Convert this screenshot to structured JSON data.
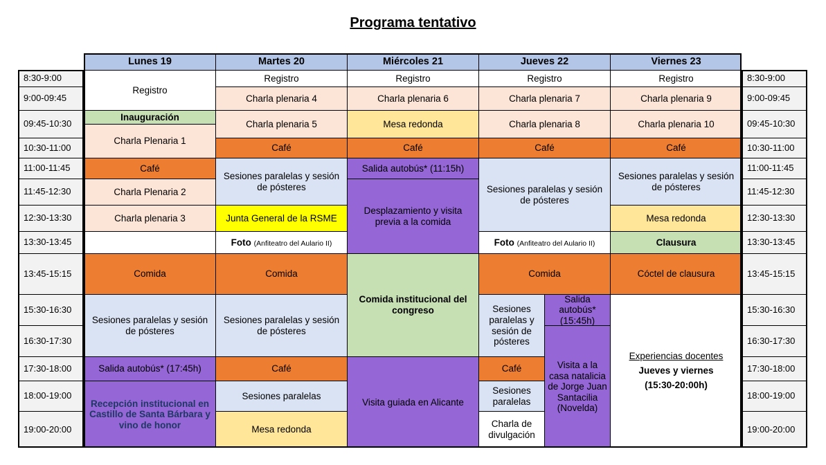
{
  "title": "Programa tentativo",
  "colors": {
    "header": "#b4c6e7",
    "time": "#f2f2f2",
    "plenary": "#fce4d6",
    "orange": "#ed7d31",
    "green": "#c6e0b4",
    "sessions": "#dae3f3",
    "purple": "#9466d6",
    "yellow": "#ffff00",
    "gold": "#ffe699",
    "white": "#ffffff",
    "navy_text": "#1f3864"
  },
  "days": [
    {
      "label": "Lunes 19",
      "col": 2,
      "cs": 1
    },
    {
      "label": "Martes 20",
      "col": 3,
      "cs": 1
    },
    {
      "label": "Miércoles 21",
      "col": 4,
      "cs": 1
    },
    {
      "label": "Jueves 22",
      "col": 5,
      "cs": 2
    },
    {
      "label": "Viernes 23",
      "col": 7,
      "cs": 1
    }
  ],
  "time_slots": [
    {
      "label": "8:30-9:00",
      "row": 2,
      "rs": 1
    },
    {
      "label": "9:00-09:45",
      "row": 3,
      "rs": 1
    },
    {
      "label": "09:45-10:30",
      "row": 4,
      "rs": 2
    },
    {
      "label": "10:30-11:00",
      "row": 6,
      "rs": 1
    },
    {
      "label": "11:00-11:45",
      "row": 7,
      "rs": 1
    },
    {
      "label": "11:45-12:30",
      "row": 8,
      "rs": 1
    },
    {
      "label": "12:30-13:30",
      "row": 9,
      "rs": 1
    },
    {
      "label": "13:30-13:45",
      "row": 10,
      "rs": 1
    },
    {
      "label": "13:45-15:15",
      "row": 11,
      "rs": 1
    },
    {
      "label": "15:30-16:30",
      "row": 12,
      "rs": 1
    },
    {
      "label": "16:30-17:30",
      "row": 13,
      "rs": 1
    },
    {
      "label": "17:30-18:00",
      "row": 14,
      "rs": 1
    },
    {
      "label": "18:00-19:00",
      "row": 15,
      "rs": 1
    },
    {
      "label": "19:00-20:00",
      "row": 16,
      "rs": 1
    }
  ],
  "cells": [
    {
      "day": "lunes",
      "text": "Registro",
      "bg": "white",
      "col": 2,
      "row": 2,
      "rs": 2
    },
    {
      "day": "lunes",
      "text": "Inauguración",
      "bg": "green",
      "bold": true,
      "col": 2,
      "row": 4
    },
    {
      "day": "lunes",
      "text": "Charla Plenaria 1",
      "bg": "plenary",
      "col": 2,
      "row": 5,
      "rs": 2
    },
    {
      "day": "lunes",
      "text": "Café",
      "bg": "orange",
      "col": 2,
      "row": 7
    },
    {
      "day": "lunes",
      "text": "Charla Plenaria 2",
      "bg": "plenary",
      "col": 2,
      "row": 8
    },
    {
      "day": "lunes",
      "text": "Charla plenaria 3",
      "bg": "plenary",
      "col": 2,
      "row": 9
    },
    {
      "day": "lunes",
      "text": "",
      "bg": "white",
      "col": 2,
      "row": 10
    },
    {
      "day": "lunes",
      "text": "Comida",
      "bg": "orange",
      "col": 2,
      "row": 11
    },
    {
      "day": "lunes",
      "text": "Sesiones paralelas y sesión de pósteres",
      "bg": "sessions",
      "col": 2,
      "row": 12,
      "rs": 2
    },
    {
      "day": "lunes",
      "text": "Salida autobús* (17:45h)",
      "bg": "purple",
      "col": 2,
      "row": 14
    },
    {
      "day": "lunes",
      "text": "Recepción institucional en Castillo de Santa Bárbara y vino de honor",
      "bg": "purple",
      "bold": true,
      "navy": true,
      "col": 2,
      "row": 15,
      "rs": 2
    },
    {
      "day": "martes",
      "text": "Registro",
      "bg": "white",
      "col": 3,
      "row": 2
    },
    {
      "day": "martes",
      "text": "Charla plenaria 4",
      "bg": "plenary",
      "col": 3,
      "row": 3
    },
    {
      "day": "martes",
      "text": "Charla plenaria 5",
      "bg": "plenary",
      "col": 3,
      "row": 4,
      "rs": 2
    },
    {
      "day": "martes",
      "text": "Café",
      "bg": "orange",
      "col": 3,
      "row": 6
    },
    {
      "day": "martes",
      "text": "Sesiones paralelas y sesión de pósteres",
      "bg": "sessions",
      "col": 3,
      "row": 7,
      "rs": 2
    },
    {
      "day": "martes",
      "text": "Junta General de la RSME",
      "bg": "yellow",
      "col": 3,
      "row": 9
    },
    {
      "day": "martes",
      "parts": [
        {
          "text": "Foto ",
          "bold": true
        },
        {
          "text": "(Anfiteatro del Aulario II)",
          "small": true
        }
      ],
      "bg": "white",
      "col": 3,
      "row": 10
    },
    {
      "day": "martes",
      "text": "Comida",
      "bg": "orange",
      "col": 3,
      "row": 11
    },
    {
      "day": "martes",
      "text": "Sesiones paralelas y sesión de pósteres",
      "bg": "sessions",
      "col": 3,
      "row": 12,
      "rs": 2
    },
    {
      "day": "martes",
      "text": "Café",
      "bg": "orange",
      "col": 3,
      "row": 14
    },
    {
      "day": "martes",
      "text": "Sesiones paralelas",
      "bg": "sessions",
      "col": 3,
      "row": 15
    },
    {
      "day": "martes",
      "text": "Mesa redonda",
      "bg": "gold",
      "col": 3,
      "row": 16
    },
    {
      "day": "miercoles",
      "text": "Registro",
      "bg": "white",
      "col": 4,
      "row": 2
    },
    {
      "day": "miercoles",
      "text": "Charla plenaria 6",
      "bg": "plenary",
      "col": 4,
      "row": 3
    },
    {
      "day": "miercoles",
      "text": "Mesa redonda",
      "bg": "gold",
      "col": 4,
      "row": 4,
      "rs": 2
    },
    {
      "day": "miercoles",
      "text": "Café",
      "bg": "orange",
      "col": 4,
      "row": 6
    },
    {
      "day": "miercoles",
      "text": "Salida autobús* (11:15h)",
      "bg": "purple",
      "col": 4,
      "row": 7
    },
    {
      "day": "miercoles",
      "text": "Desplazamiento y visita previa a la comida",
      "bg": "purple",
      "col": 4,
      "row": 8,
      "rs": 3
    },
    {
      "day": "miercoles",
      "text": "Comida institucional del congreso",
      "bg": "green",
      "bold": true,
      "col": 4,
      "row": 11,
      "rs": 3
    },
    {
      "day": "miercoles",
      "text": "Visita guiada en Alicante",
      "bg": "purple",
      "col": 4,
      "row": 14,
      "rs": 3
    },
    {
      "day": "jueves",
      "text": "Registro",
      "bg": "white",
      "col": 5,
      "cs": 2,
      "row": 2
    },
    {
      "day": "jueves",
      "text": "Charla plenaria 7",
      "bg": "plenary",
      "col": 5,
      "cs": 2,
      "row": 3
    },
    {
      "day": "jueves",
      "text": "Charla plenaria 8",
      "bg": "plenary",
      "col": 5,
      "cs": 2,
      "row": 4,
      "rs": 2
    },
    {
      "day": "jueves",
      "text": "Café",
      "bg": "orange",
      "col": 5,
      "cs": 2,
      "row": 6
    },
    {
      "day": "jueves",
      "text": "Sesiones paralelas y sesión de pósteres",
      "bg": "sessions",
      "col": 5,
      "cs": 2,
      "row": 7,
      "rs": 3
    },
    {
      "day": "jueves",
      "parts": [
        {
          "text": "Foto ",
          "bold": true
        },
        {
          "text": "(Anfiteatro del Aulario II)",
          "small": true
        }
      ],
      "bg": "white",
      "col": 5,
      "cs": 2,
      "row": 10
    },
    {
      "day": "jueves",
      "text": "Comida",
      "bg": "orange",
      "col": 5,
      "cs": 2,
      "row": 11
    },
    {
      "day": "jueves",
      "text": "Sesiones paralelas y sesión de pósteres",
      "bg": "sessions",
      "col": 5,
      "row": 12,
      "rs": 2
    },
    {
      "day": "jueves",
      "text": "Salida autobús* (15:45h)",
      "bg": "purple",
      "col": 6,
      "row": 12
    },
    {
      "day": "jueves",
      "text": "Visita a la casa natalicia de Jorge Juan Santacilia (Novelda)",
      "bg": "purple",
      "col": 6,
      "row": 13,
      "rs": 4
    },
    {
      "day": "jueves",
      "text": "Café",
      "bg": "orange",
      "col": 5,
      "row": 14
    },
    {
      "day": "jueves",
      "text": "Sesiones paralelas",
      "bg": "sessions",
      "col": 5,
      "row": 15
    },
    {
      "day": "jueves",
      "text": "Charla de divulgación",
      "bg": "white",
      "col": 5,
      "row": 16
    },
    {
      "day": "viernes",
      "text": "Registro",
      "bg": "white",
      "col": 7,
      "row": 2
    },
    {
      "day": "viernes",
      "text": "Charla plenaria 9",
      "bg": "plenary",
      "col": 7,
      "row": 3
    },
    {
      "day": "viernes",
      "text": "Charla plenaria 10",
      "bg": "plenary",
      "col": 7,
      "row": 4,
      "rs": 2
    },
    {
      "day": "viernes",
      "text": "Café",
      "bg": "orange",
      "col": 7,
      "row": 6
    },
    {
      "day": "viernes",
      "text": "Sesiones paralelas y sesión de pósteres",
      "bg": "sessions",
      "col": 7,
      "row": 7,
      "rs": 2
    },
    {
      "day": "viernes",
      "text": "Mesa redonda",
      "bg": "gold",
      "col": 7,
      "row": 9
    },
    {
      "day": "viernes",
      "text": "Clausura",
      "bg": "green",
      "bold": true,
      "col": 7,
      "row": 10
    },
    {
      "day": "viernes",
      "text": "Cóctel de clausura",
      "bg": "orange",
      "col": 7,
      "row": 11
    },
    {
      "day": "viernes",
      "lines": [
        {
          "text": "Experiencias docentes",
          "underline": true
        },
        {
          "text": "Jueves y viernes",
          "bold": true
        },
        {
          "text": "(15:30-20:00h)",
          "bold": true
        }
      ],
      "bg": "white",
      "col": 7,
      "row": 12,
      "rs": 5
    }
  ]
}
